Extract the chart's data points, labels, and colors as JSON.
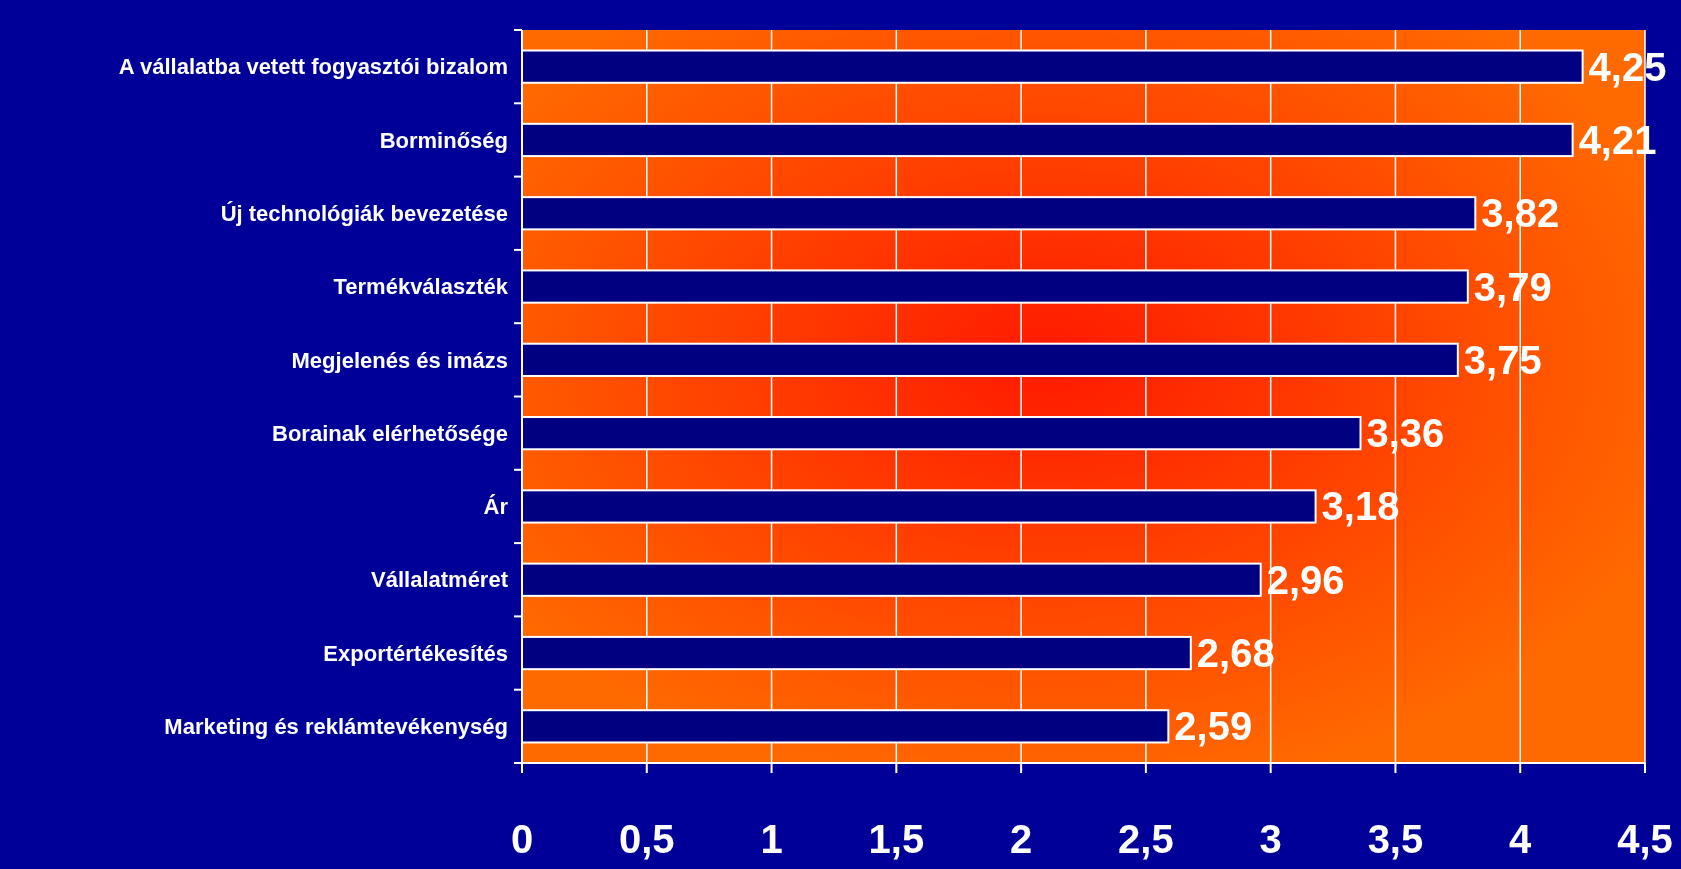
{
  "chart_data": {
    "type": "bar",
    "orientation": "horizontal",
    "categories": [
      "A vállalatba vetett fogyasztói bizalom",
      "Borminőség",
      "Új technológiák bevezetése",
      "Termékválaszték",
      "Megjelenés és imázs",
      "Borainak elérhetősége",
      "Ár",
      "Vállalatméret",
      "Exportértékesítés",
      "Marketing és reklámtevékenység"
    ],
    "values": [
      4.25,
      4.21,
      3.82,
      3.79,
      3.75,
      3.36,
      3.18,
      2.96,
      2.68,
      2.59
    ],
    "value_labels": [
      "4,25",
      "4,21",
      "3,82",
      "3,79",
      "3,75",
      "3,36",
      "3,18",
      "2,96",
      "2,68",
      "2,59"
    ],
    "color": "#000080",
    "xlim": [
      0,
      4.5
    ],
    "xticks": [
      0,
      {
        "value": 0.5,
        "label": "0,5"
      },
      1,
      {
        "value": 1.5,
        "label": "1,5"
      },
      2,
      {
        "value": 2.5,
        "label": "2,5"
      },
      3,
      {
        "value": 3.5,
        "label": "3,5"
      },
      4,
      {
        "value": 4.5,
        "label": "4,5"
      }
    ],
    "grid": "x"
  }
}
